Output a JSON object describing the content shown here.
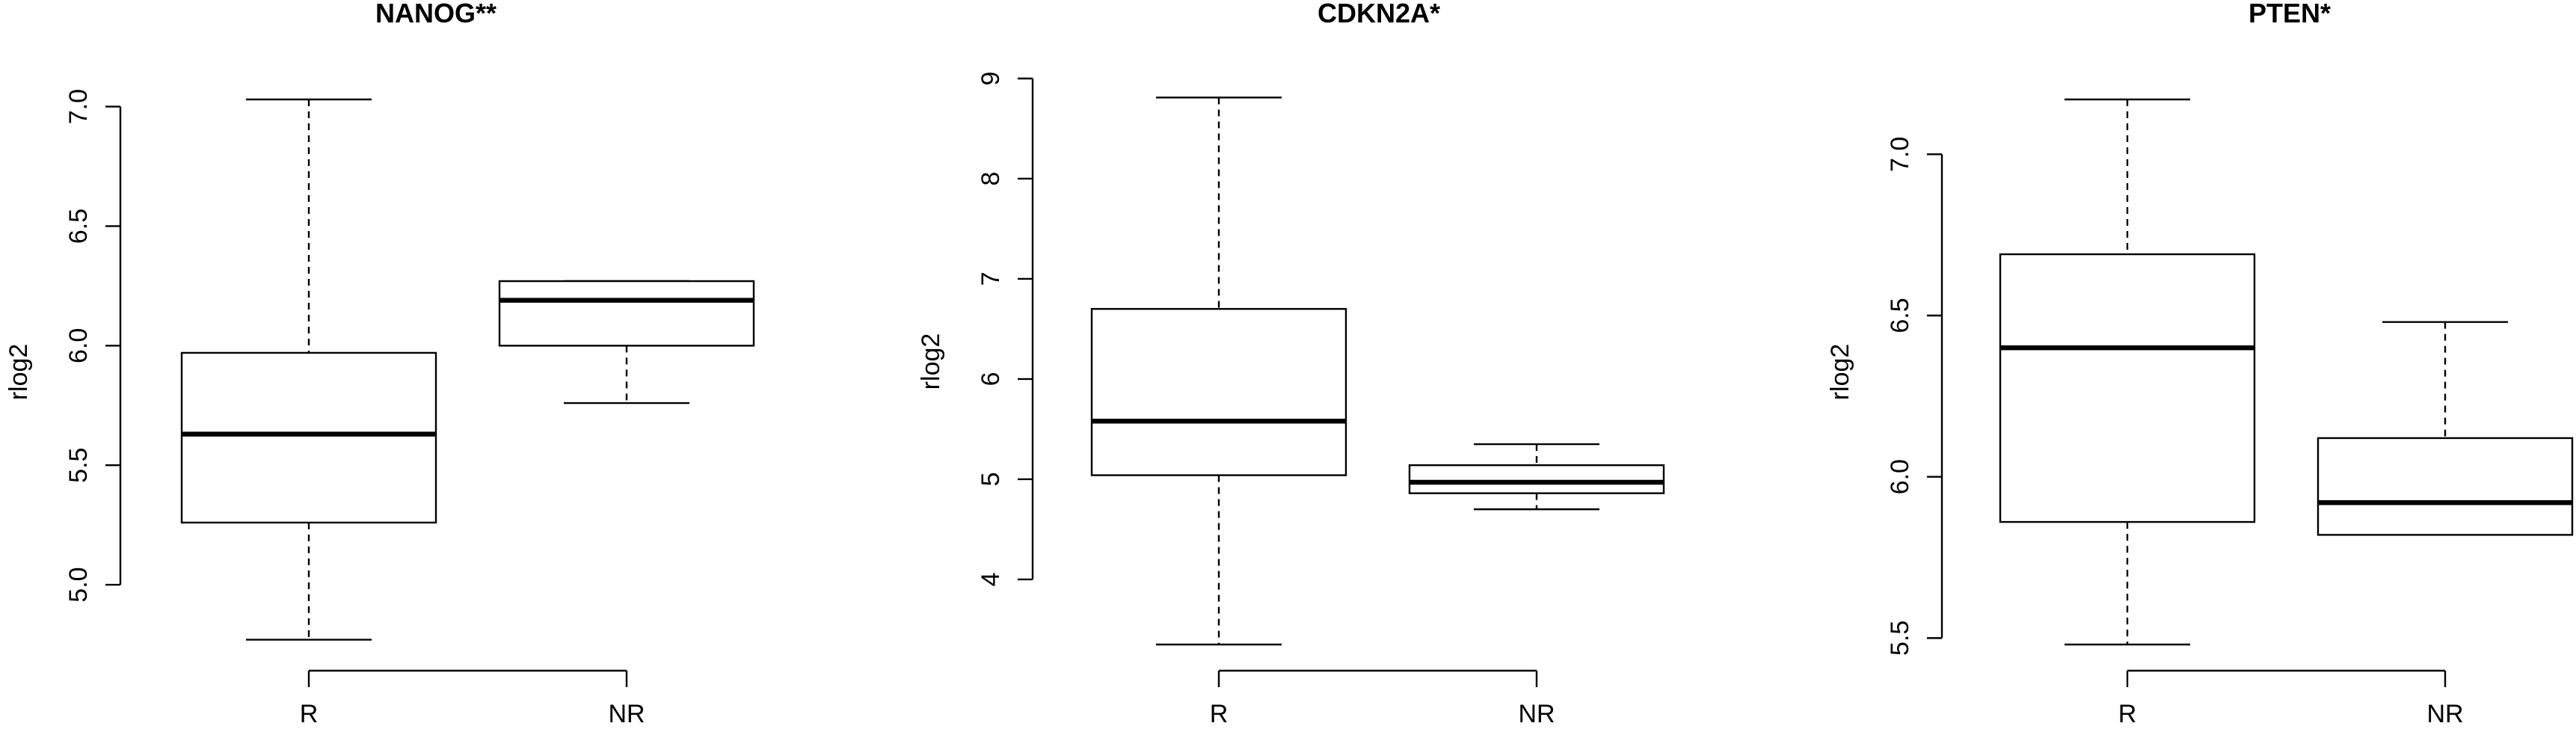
{
  "chart_data": [
    {
      "type": "boxplot",
      "title": "NANOG**",
      "ylabel": "rlog2",
      "categories": [
        "R",
        "NR"
      ],
      "yticks": [
        5.0,
        5.5,
        6.0,
        6.5,
        7.0
      ],
      "ytick_labels": [
        "5.0",
        "5.5",
        "6.0",
        "6.5",
        "7.0"
      ],
      "ylim": [
        4.75,
        7.03
      ],
      "boxes": [
        {
          "min": 4.77,
          "q1": 5.26,
          "median": 5.63,
          "q3": 5.97,
          "max": 7.03
        },
        {
          "min": 5.76,
          "q1": 6.0,
          "median": 6.19,
          "q3": 6.27,
          "max": 6.27
        }
      ]
    },
    {
      "type": "boxplot",
      "title": "CDKN2A*",
      "ylabel": "rlog2",
      "categories": [
        "R",
        "NR"
      ],
      "yticks": [
        4,
        5,
        6,
        7,
        8,
        9
      ],
      "ytick_labels": [
        "4",
        "5",
        "6",
        "7",
        "8",
        "9"
      ],
      "ylim": [
        3.35,
        9.0
      ],
      "boxes": [
        {
          "min": 3.35,
          "q1": 5.04,
          "median": 5.58,
          "q3": 6.7,
          "max": 8.81
        },
        {
          "min": 4.7,
          "q1": 4.86,
          "median": 4.97,
          "q3": 5.14,
          "max": 5.35
        }
      ]
    },
    {
      "type": "boxplot",
      "title": "PTEN*",
      "ylabel": "rlog2",
      "categories": [
        "R",
        "NR"
      ],
      "yticks": [
        5.5,
        6.0,
        6.5,
        7.0
      ],
      "ytick_labels": [
        "5.5",
        "6.0",
        "6.5",
        "7.0"
      ],
      "ylim": [
        5.48,
        7.17
      ],
      "boxes": [
        {
          "min": 5.48,
          "q1": 5.86,
          "median": 6.4,
          "q3": 6.69,
          "max": 7.17
        },
        {
          "min": 5.82,
          "q1": 5.82,
          "median": 5.92,
          "q3": 6.12,
          "max": 6.48
        }
      ]
    }
  ]
}
